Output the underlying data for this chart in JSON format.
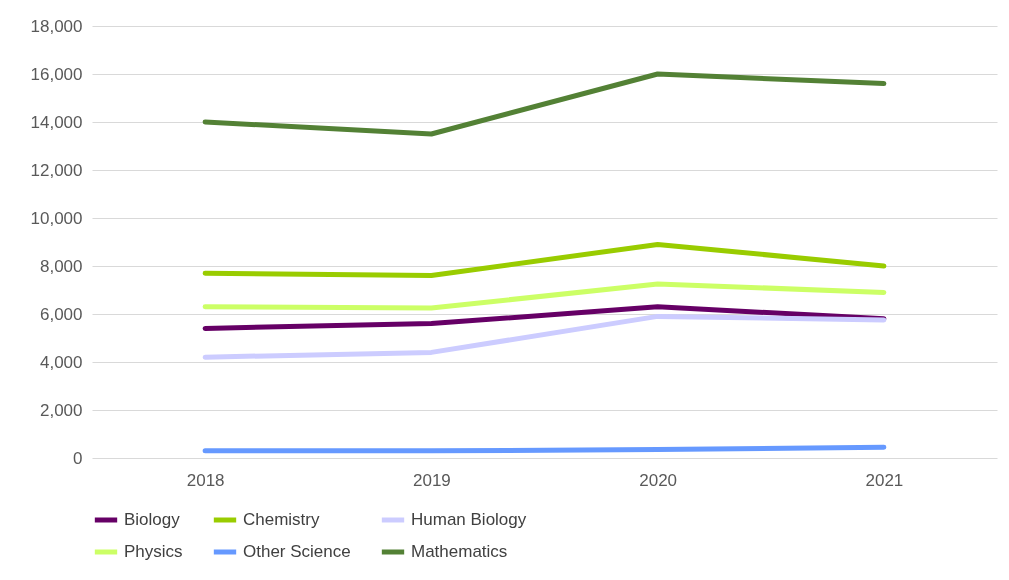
{
  "chart_data": {
    "type": "line",
    "categories": [
      "2018",
      "2019",
      "2020",
      "2021"
    ],
    "series": [
      {
        "name": "Biology",
        "color": "#660066",
        "values": [
          5400,
          5600,
          6300,
          5800
        ]
      },
      {
        "name": "Chemistry",
        "color": "#99cc00",
        "values": [
          7700,
          7600,
          8900,
          8000
        ]
      },
      {
        "name": "Human Biology",
        "color": "#ccccff",
        "values": [
          4200,
          4400,
          5900,
          5750
        ]
      },
      {
        "name": "Physics",
        "color": "#ccff66",
        "values": [
          6300,
          6250,
          7250,
          6900
        ]
      },
      {
        "name": "Other Science",
        "color": "#6699ff",
        "values": [
          300,
          300,
          350,
          450
        ]
      },
      {
        "name": "Mathematics",
        "color": "#538135",
        "values": [
          14000,
          13500,
          16000,
          15600
        ]
      }
    ],
    "ylim": [
      0,
      18000
    ],
    "yticks": [
      0,
      {
        "value": 2000,
        "label": "2,000"
      },
      {
        "value": 4000,
        "label": "4,000"
      },
      {
        "value": 6000,
        "label": "6,000"
      },
      {
        "value": 8000,
        "label": "8,000"
      },
      {
        "value": 10000,
        "label": "10,000"
      },
      {
        "value": 12000,
        "label": "12,000"
      },
      {
        "value": 14000,
        "label": "14,000"
      },
      {
        "value": 16000,
        "label": "16,000"
      },
      {
        "value": 18000,
        "label": "18,000"
      }
    ],
    "grid": "y",
    "legend": "bottom",
    "marker": "none",
    "line_style": "solid"
  }
}
